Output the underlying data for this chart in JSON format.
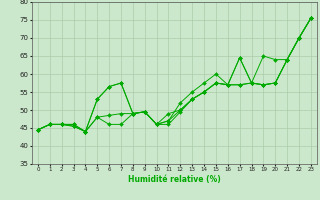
{
  "xlabel": "Humidité relative (%)",
  "xlim": [
    -0.5,
    23.5
  ],
  "ylim": [
    35,
    80
  ],
  "yticks": [
    35,
    40,
    45,
    50,
    55,
    60,
    65,
    70,
    75,
    80
  ],
  "xticks": [
    0,
    1,
    2,
    3,
    4,
    5,
    6,
    7,
    8,
    9,
    10,
    11,
    12,
    13,
    14,
    15,
    16,
    17,
    18,
    19,
    20,
    21,
    22,
    23
  ],
  "bg_color": "#cce8cc",
  "grid_color": "#aaccaa",
  "line_color": "#00aa00",
  "series": [
    [
      44.5,
      46,
      46,
      45.5,
      44,
      53,
      56.5,
      57.5,
      49,
      49.5,
      46,
      46,
      49.5,
      53,
      55,
      57.5,
      57,
      64.5,
      57.5,
      65,
      64,
      64,
      70,
      75.5
    ],
    [
      44.5,
      46,
      46,
      45.5,
      44,
      53,
      56.5,
      57.5,
      49,
      49.5,
      46,
      47,
      52,
      55,
      57.5,
      60,
      57,
      64.5,
      57.5,
      57,
      57.5,
      64,
      70,
      75.5
    ],
    [
      44.5,
      46,
      46,
      46,
      44,
      48,
      48.5,
      49,
      49,
      49.5,
      46,
      47,
      50,
      53,
      55,
      57.5,
      57,
      57,
      57.5,
      57,
      57.5,
      64,
      70,
      75.5
    ],
    [
      44.5,
      46,
      46,
      46,
      44,
      48,
      46,
      46,
      49,
      49.5,
      46,
      49,
      50,
      53,
      55,
      57.5,
      57,
      57,
      57.5,
      57,
      57.5,
      64,
      70,
      75.5
    ]
  ]
}
